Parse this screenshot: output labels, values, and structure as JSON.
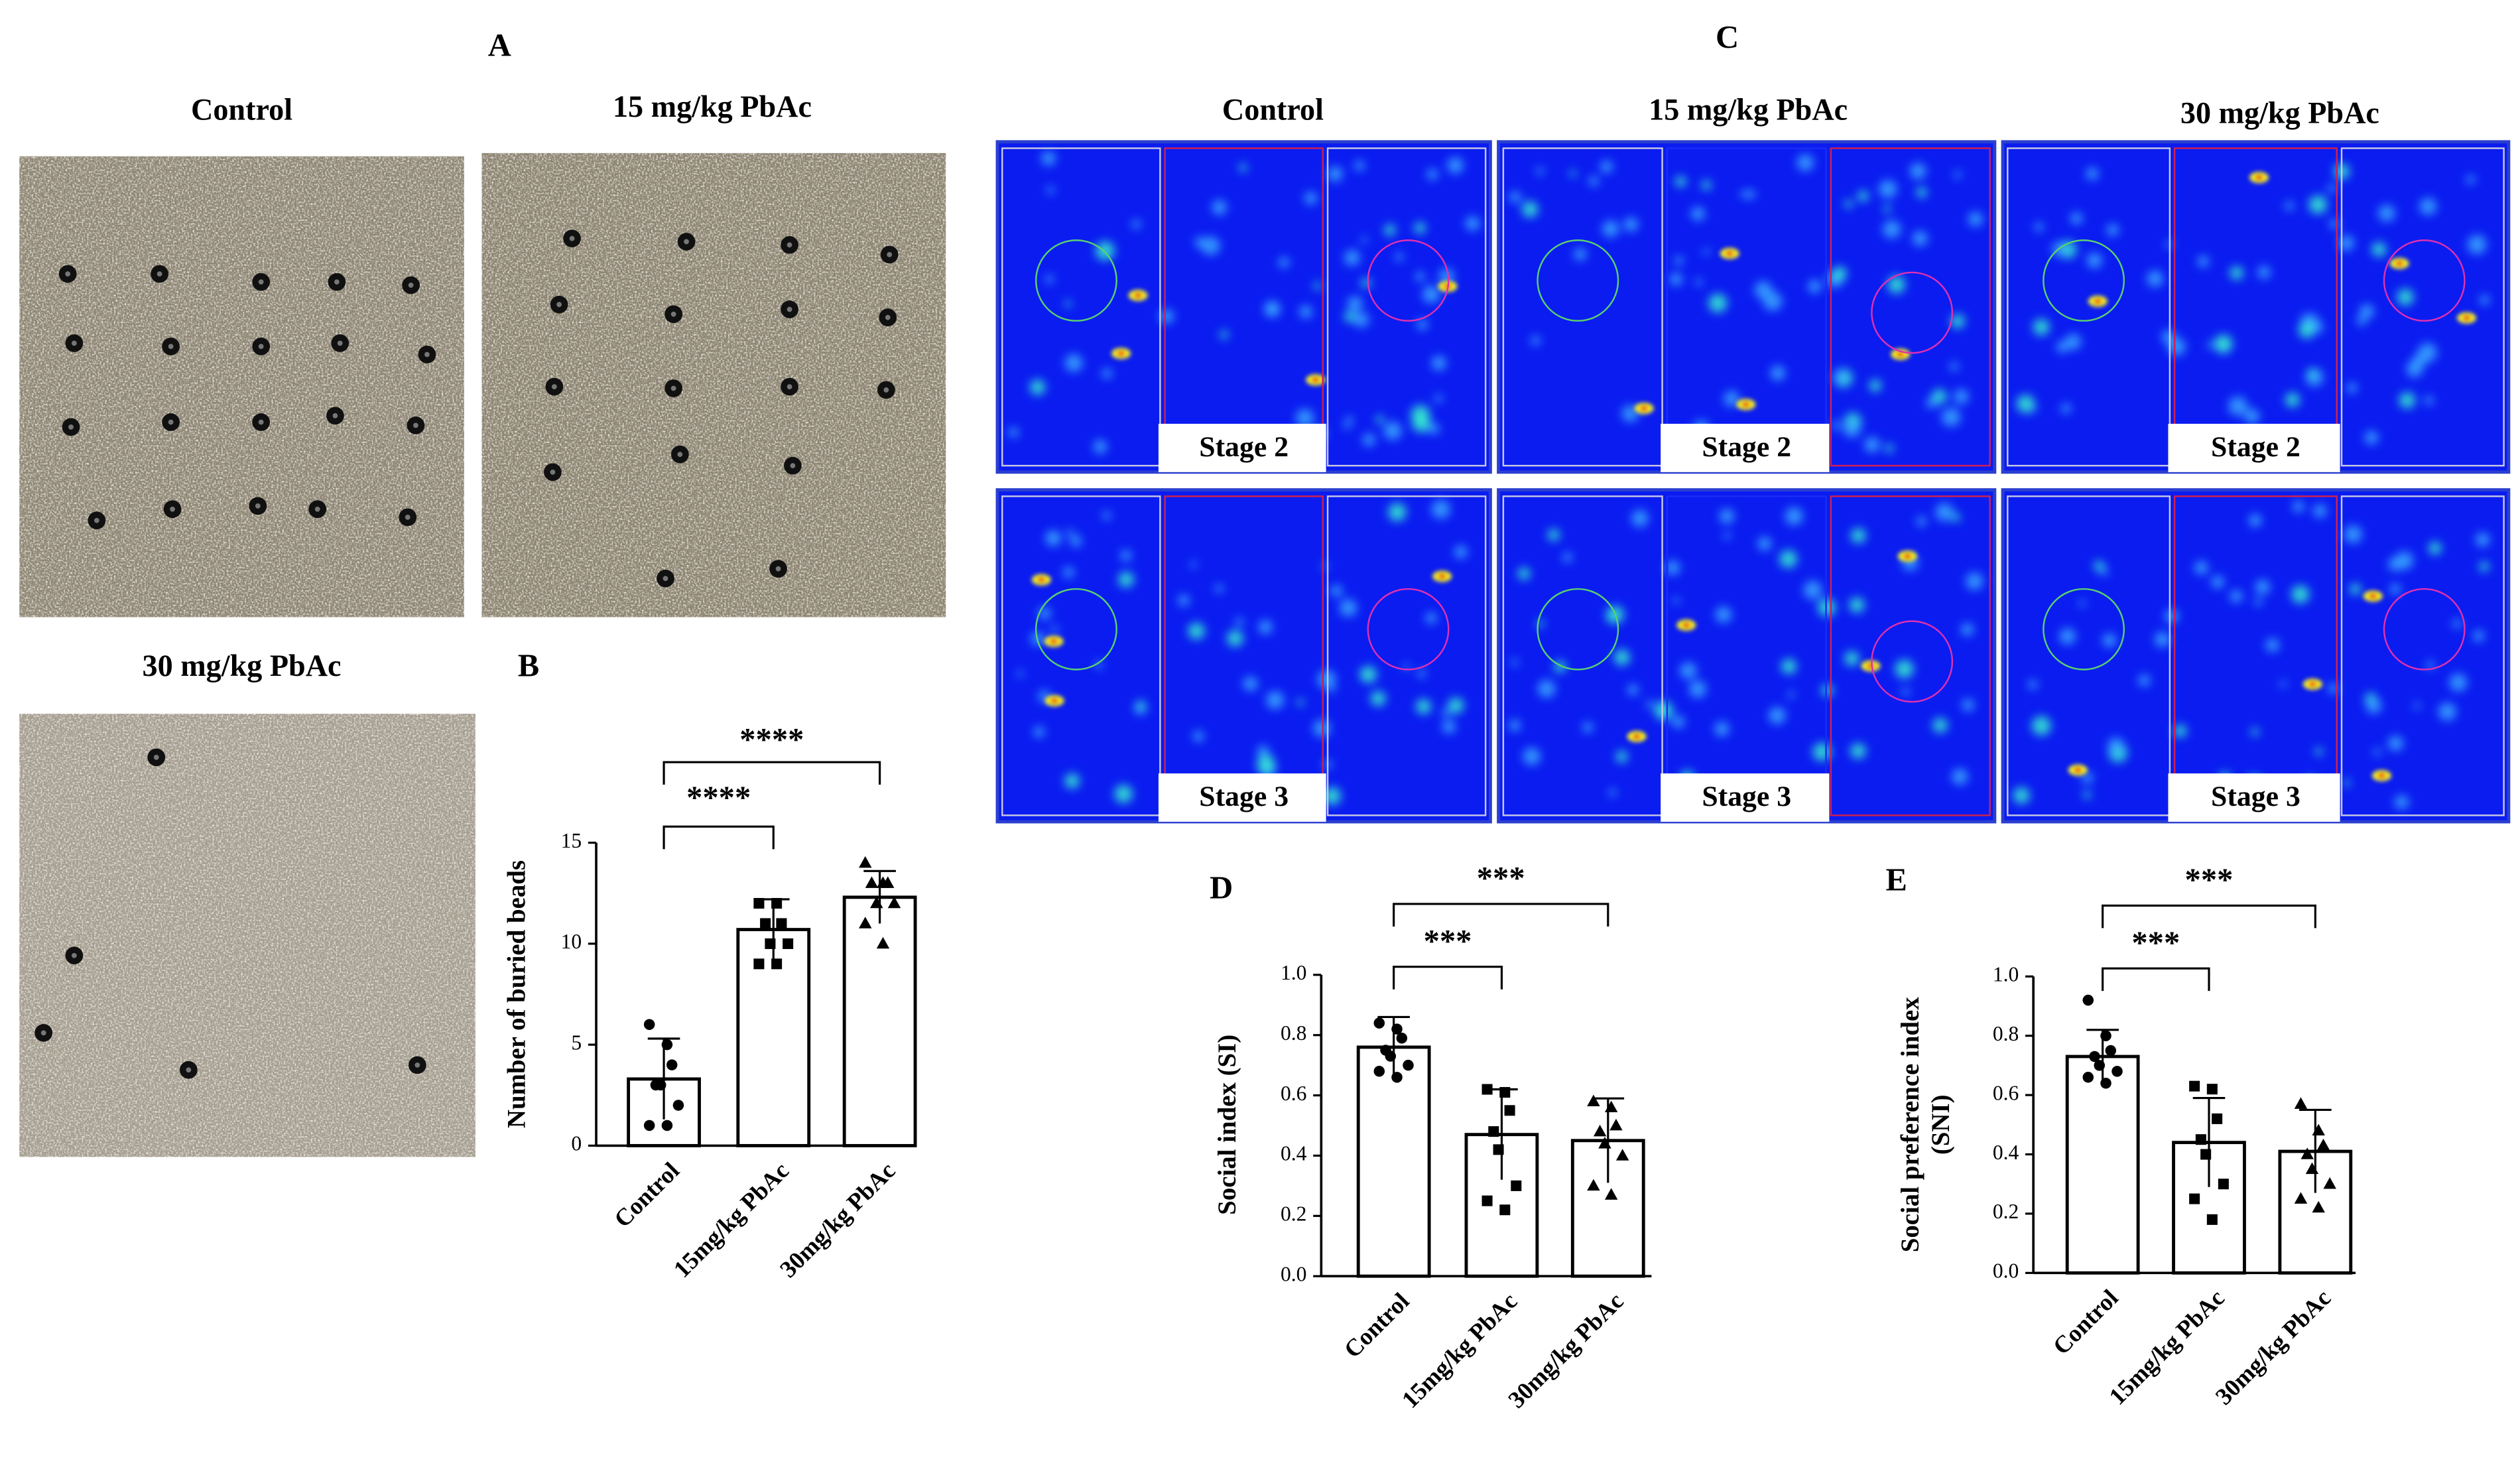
{
  "panel_a": {
    "label": "A",
    "captions": [
      "Control",
      "15 mg/kg PbAc",
      "30 mg/kg PbAc"
    ]
  },
  "panel_c": {
    "label": "C",
    "captions": [
      "Control",
      "15 mg/kg PbAc",
      "30 mg/kg PbAc"
    ],
    "stages": [
      "Stage 2",
      "Stage 3"
    ]
  },
  "chart_data": [
    {
      "type": "bar",
      "panel": "B",
      "ylabel": [
        "Number of buried beads"
      ],
      "categories": [
        "Control",
        "15mg/kg PbAc",
        "30mg/kg PbAc"
      ],
      "values": [
        3.3,
        10.7,
        12.3
      ],
      "errors": [
        2.0,
        1.5,
        1.3
      ],
      "points": [
        [
          6,
          5,
          4,
          3,
          3,
          2,
          1,
          1
        ],
        [
          12,
          12,
          11,
          11,
          10,
          10,
          9,
          9
        ],
        [
          14,
          13,
          13,
          13,
          12,
          12,
          11,
          10
        ]
      ],
      "ylim": [
        0,
        15
      ],
      "yticks": [
        0,
        5,
        10,
        15
      ],
      "annotations": [
        "****",
        "****"
      ],
      "color": "#ffffff"
    },
    {
      "type": "bar",
      "panel": "D",
      "ylabel": [
        "Social index (SI)"
      ],
      "categories": [
        "Control",
        "15mg/kg PbAc",
        "30mg/kg PbAc"
      ],
      "values": [
        0.76,
        0.47,
        0.45
      ],
      "errors": [
        0.1,
        0.15,
        0.14
      ],
      "points": [
        [
          0.84,
          0.82,
          0.79,
          0.75,
          0.73,
          0.7,
          0.68,
          0.66
        ],
        [
          0.62,
          0.61,
          0.55,
          0.48,
          0.42,
          0.3,
          0.25,
          0.22
        ],
        [
          0.58,
          0.56,
          0.5,
          0.48,
          0.44,
          0.4,
          0.3,
          0.27
        ]
      ],
      "ylim": [
        0,
        1
      ],
      "yticks": [
        {
          "value": 0,
          "label": "0.0"
        },
        0.2,
        0.4,
        0.6,
        0.8,
        {
          "value": 1,
          "label": "1.0"
        }
      ],
      "annotations": [
        "***",
        "***"
      ],
      "color": "#ffffff"
    },
    {
      "type": "bar",
      "panel": "E",
      "ylabel": [
        "Social preference index",
        "(SNI)"
      ],
      "categories": [
        "Control",
        "15mg/kg PbAc",
        "30mg/kg PbAc"
      ],
      "values": [
        0.73,
        0.44,
        0.41
      ],
      "errors": [
        0.09,
        0.15,
        0.14
      ],
      "points": [
        [
          0.92,
          0.8,
          0.75,
          0.73,
          0.7,
          0.68,
          0.66,
          0.64
        ],
        [
          0.63,
          0.62,
          0.52,
          0.45,
          0.4,
          0.3,
          0.25,
          0.18
        ],
        [
          0.57,
          0.48,
          0.43,
          0.4,
          0.35,
          0.3,
          0.25,
          0.22
        ]
      ],
      "ylim": [
        0,
        1
      ],
      "yticks": [
        {
          "value": 0,
          "label": "0.0"
        },
        0.2,
        0.4,
        0.6,
        0.8,
        {
          "value": 1,
          "label": "1.0"
        }
      ],
      "annotations": [
        "***",
        "***"
      ],
      "color": "#ffffff"
    }
  ]
}
